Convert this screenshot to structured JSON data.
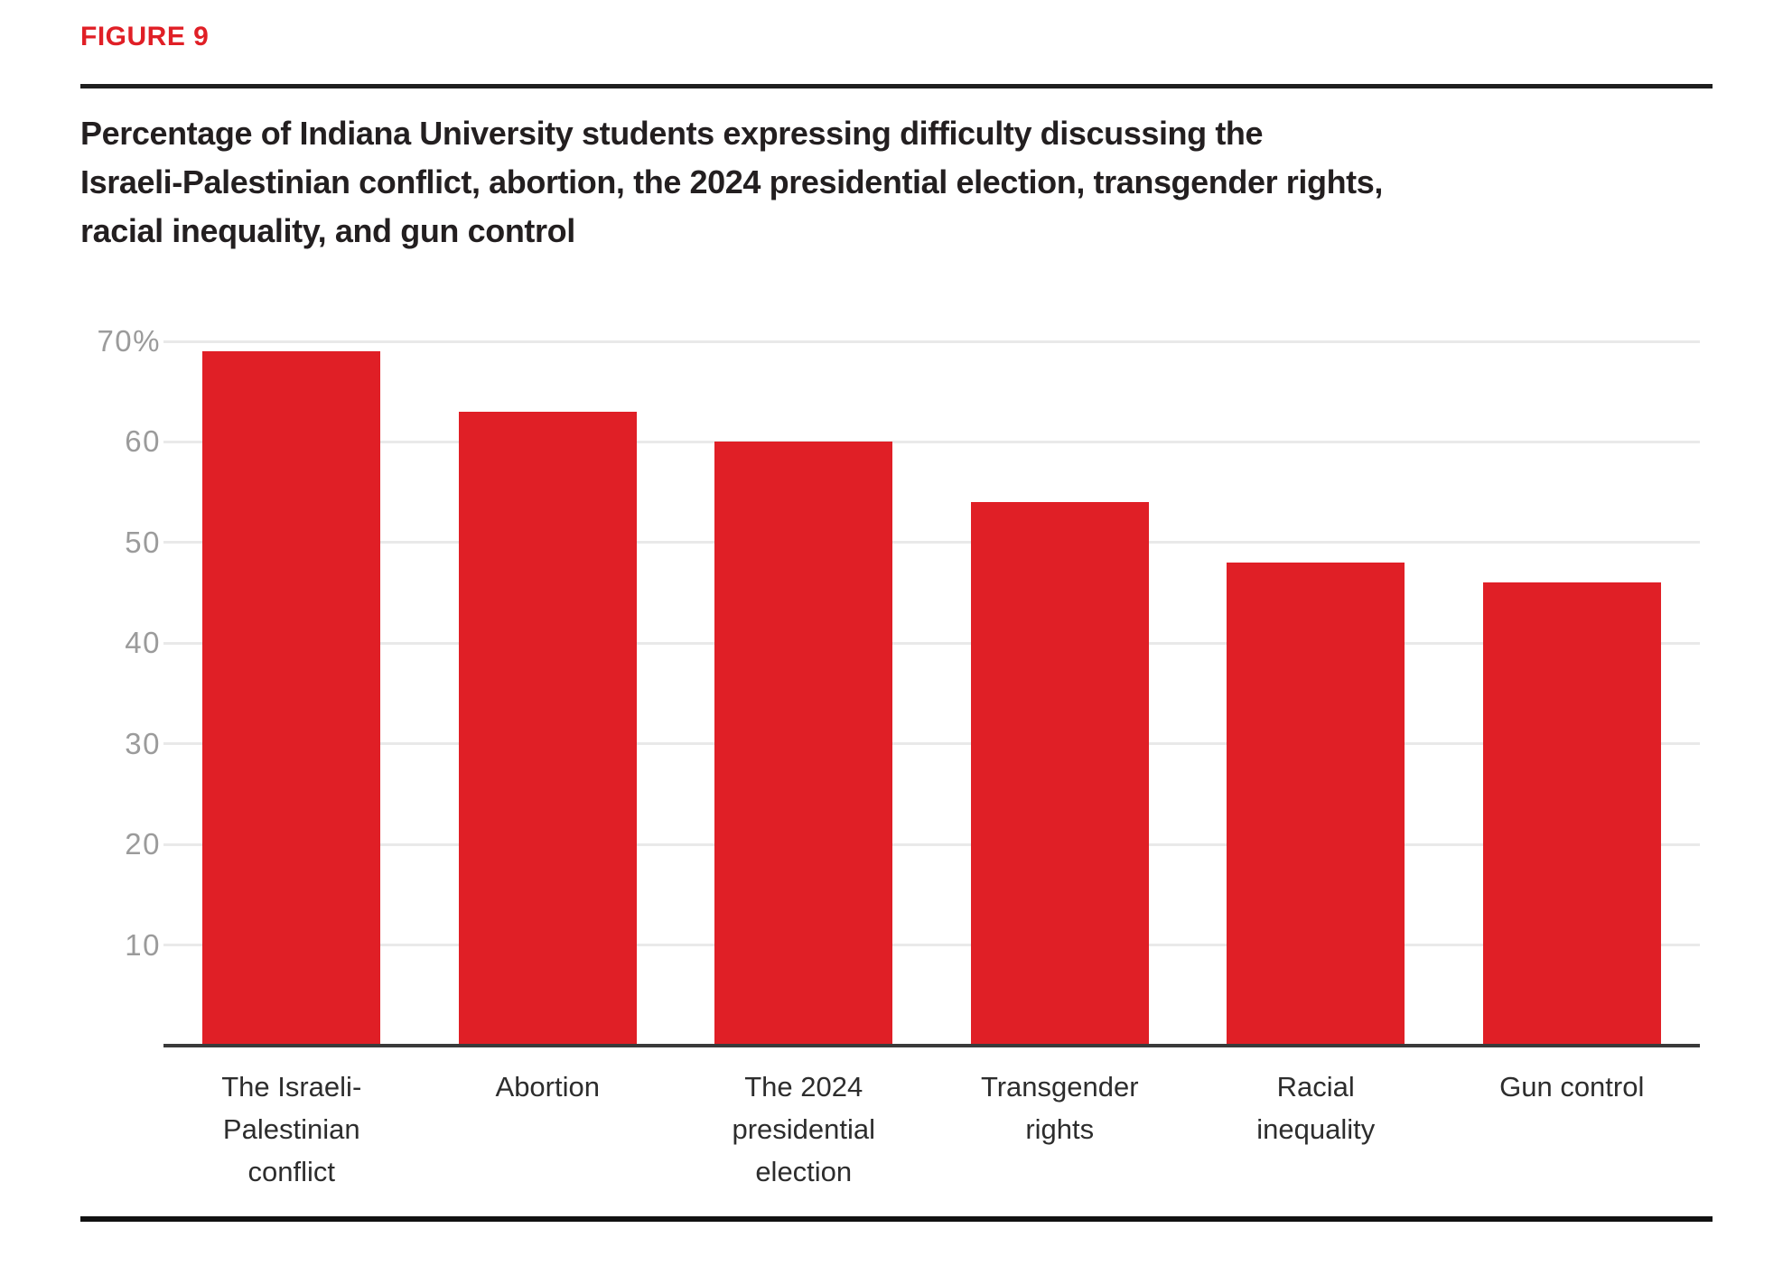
{
  "figure": {
    "label": "FIGURE 9",
    "title": "Percentage of Indiana University students expressing difficulty discussing the\nIsraeli-Palestinian conflict, abortion, the 2024 presidential election, transgender rights,\nracial inequality, and gun control"
  },
  "chart_data": {
    "type": "bar",
    "title": "Percentage of Indiana University students expressing difficulty discussing the Israeli-Palestinian conflict, abortion, the 2024 presidential election, transgender rights, racial inequality, and gun control",
    "categories": [
      "The Israeli-Palestinian conflict",
      "Abortion",
      "The 2024 presidential election",
      "Transgender rights",
      "Racial inequality",
      "Gun control"
    ],
    "category_labels_multiline": [
      "The Israeli-\nPalestinian\nconflict",
      "Abortion",
      "The 2024\npresidential\nelection",
      "Transgender\nrights",
      "Racial\ninequality",
      "Gun control"
    ],
    "values": [
      69,
      63,
      60,
      54,
      48,
      46
    ],
    "unit": "percent",
    "xlabel": "",
    "ylabel": "",
    "ylim": [
      0,
      70
    ],
    "y_ticks": [
      {
        "value": 70,
        "label": "70%"
      },
      {
        "value": 60,
        "label": "60"
      },
      {
        "value": 50,
        "label": "50"
      },
      {
        "value": 40,
        "label": "40"
      },
      {
        "value": 30,
        "label": "30"
      },
      {
        "value": 20,
        "label": "20"
      },
      {
        "value": 10,
        "label": "10"
      }
    ],
    "grid": "horizontal",
    "legend": "none",
    "bar_color": "#e01f26"
  },
  "colors": {
    "accent_red": "#e01f26",
    "title_text": "#231f20",
    "tick_label_gray": "#9b9b9b",
    "gridline": "#e9e9e9",
    "axis_line": "#3a3a3a",
    "rule_black": "#1f1f1f"
  }
}
